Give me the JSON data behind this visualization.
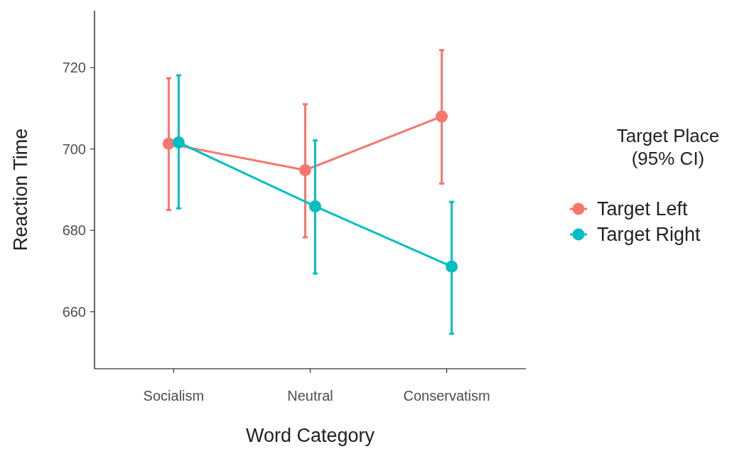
{
  "chart_data": {
    "type": "line",
    "xlabel": "Word Category",
    "ylabel": "Reaction Time",
    "legend_title": "Target Place\n(95% CI)",
    "categories": [
      "Socialism",
      "Neutral",
      "Conservatism"
    ],
    "series": [
      {
        "name": "Target Left",
        "color": "#f8766d",
        "values": [
          701.3,
          694.8,
          708.0
        ],
        "errors": [
          [
            685.0,
            717.4
          ],
          [
            678.3,
            711.0
          ],
          [
            691.5,
            724.3
          ]
        ]
      },
      {
        "name": "Target Right",
        "color": "#00bfc4",
        "values": [
          701.6,
          685.9,
          671.1
        ],
        "errors": [
          [
            685.4,
            718.1
          ],
          [
            669.4,
            702.1
          ],
          [
            654.6,
            687.0
          ]
        ]
      }
    ],
    "ylim": [
      646,
      734
    ],
    "yticks": [
      660,
      680,
      700,
      720
    ],
    "grid": false,
    "legend": "right",
    "marker": "circle",
    "line_style": "solid"
  }
}
